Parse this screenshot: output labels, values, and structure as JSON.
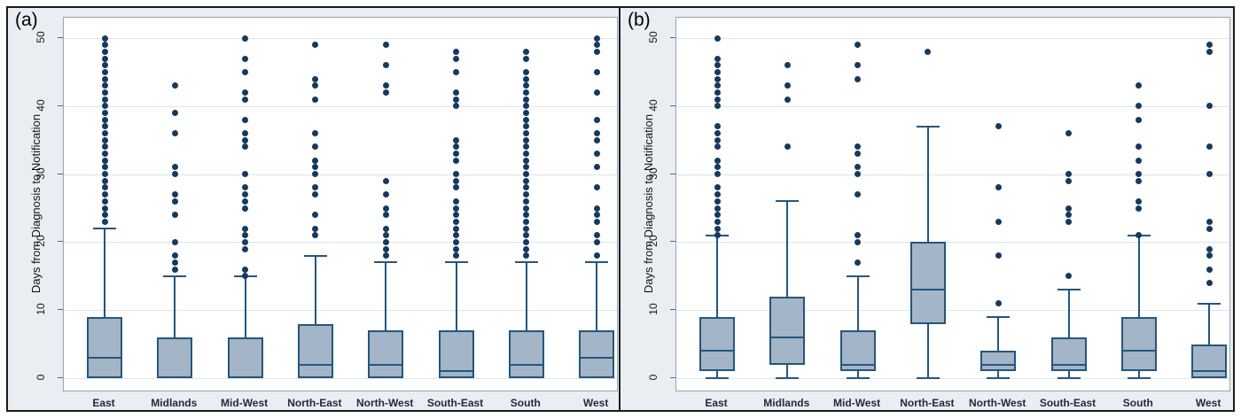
{
  "colors": {
    "box_fill": "#a3b5c7",
    "box_border": "#24567e",
    "outlier_dot": "#17395e",
    "gridline": "#d9e6f0",
    "plot_background": "#ffffff",
    "panel_background": "#e9eef2",
    "frame_border": "#1b1b1b",
    "axis_text": "#14161c"
  },
  "chart_data": [
    {
      "type": "box",
      "panel_label": "(a)",
      "ylabel": "Days from Diagnosis to Notification",
      "yticks": [
        0,
        10,
        20,
        30,
        40,
        50
      ],
      "ylim": [
        0,
        50
      ],
      "grid": true,
      "legend_position": "none",
      "categories": [
        "East",
        "Midlands",
        "Mid-West",
        "North-East",
        "North-West",
        "South-East",
        "South",
        "West"
      ],
      "boxes": [
        {
          "category": "East",
          "q1": 0,
          "median": 3,
          "q3": 9,
          "whisker_low": 0,
          "whisker_high": 22,
          "outliers": [
            23,
            24,
            25,
            26,
            27,
            28,
            29,
            30,
            31,
            32,
            33,
            34,
            35,
            36,
            37,
            38,
            39,
            40,
            41,
            42,
            43,
            44,
            45,
            46,
            47,
            48,
            49,
            50
          ]
        },
        {
          "category": "Midlands",
          "q1": 0,
          "median": 0,
          "q3": 6,
          "whisker_low": 0,
          "whisker_high": 15,
          "outliers": [
            16,
            17,
            18,
            20,
            24,
            26,
            27,
            30,
            31,
            36,
            39,
            43
          ]
        },
        {
          "category": "Mid-West",
          "q1": 0,
          "median": 0,
          "q3": 6,
          "whisker_low": 0,
          "whisker_high": 15,
          "outliers": [
            15,
            16,
            19,
            20,
            21,
            22,
            25,
            26,
            27,
            28,
            30,
            34,
            35,
            36,
            38,
            41,
            42,
            45,
            47,
            50
          ]
        },
        {
          "category": "North-East",
          "q1": 0,
          "median": 2,
          "q3": 8,
          "whisker_low": 0,
          "whisker_high": 18,
          "outliers": [
            21,
            22,
            24,
            27,
            28,
            30,
            31,
            32,
            34,
            36,
            41,
            43,
            44,
            49
          ]
        },
        {
          "category": "North-West",
          "q1": 0,
          "median": 2,
          "q3": 7,
          "whisker_low": 0,
          "whisker_high": 17,
          "outliers": [
            18,
            19,
            20,
            21,
            22,
            24,
            25,
            27,
            29,
            42,
            43,
            46,
            49
          ]
        },
        {
          "category": "South-East",
          "q1": 0,
          "median": 1,
          "q3": 7,
          "whisker_low": 0,
          "whisker_high": 17,
          "outliers": [
            18,
            19,
            20,
            21,
            22,
            23,
            24,
            25,
            26,
            28,
            29,
            30,
            32,
            33,
            34,
            35,
            40,
            41,
            42,
            45,
            47,
            48
          ]
        },
        {
          "category": "South",
          "q1": 0,
          "median": 2,
          "q3": 7,
          "whisker_low": 0,
          "whisker_high": 17,
          "outliers": [
            18,
            19,
            20,
            21,
            22,
            23,
            24,
            25,
            26,
            27,
            28,
            29,
            30,
            31,
            32,
            33,
            34,
            35,
            36,
            37,
            38,
            39,
            40,
            41,
            42,
            43,
            44,
            45,
            47,
            48
          ]
        },
        {
          "category": "West",
          "q1": 0,
          "median": 3,
          "q3": 7,
          "whisker_low": 0,
          "whisker_high": 17,
          "outliers": [
            18,
            20,
            21,
            23,
            24,
            25,
            28,
            31,
            33,
            35,
            36,
            38,
            42,
            45,
            48,
            49,
            50
          ]
        }
      ]
    },
    {
      "type": "box",
      "panel_label": "(b)",
      "ylabel": "Days from Diagnosis to Notification",
      "yticks": [
        0,
        10,
        20,
        30,
        40,
        50
      ],
      "ylim": [
        0,
        50
      ],
      "grid": true,
      "legend_position": "none",
      "categories": [
        "East",
        "Midlands",
        "Mid-West",
        "North-East",
        "North-West",
        "South-East",
        "South",
        "West"
      ],
      "boxes": [
        {
          "category": "East",
          "q1": 1,
          "median": 4,
          "q3": 9,
          "whisker_low": 0,
          "whisker_high": 21,
          "outliers": [
            21,
            22,
            23,
            24,
            25,
            26,
            27,
            28,
            30,
            31,
            32,
            34,
            35,
            36,
            37,
            40,
            41,
            42,
            43,
            44,
            45,
            46,
            47,
            50
          ]
        },
        {
          "category": "Midlands",
          "q1": 2,
          "median": 6,
          "q3": 12,
          "whisker_low": 0,
          "whisker_high": 26,
          "outliers": [
            34,
            41,
            43,
            46
          ]
        },
        {
          "category": "Mid-West",
          "q1": 1,
          "median": 2,
          "q3": 7,
          "whisker_low": 0,
          "whisker_high": 15,
          "outliers": [
            17,
            20,
            21,
            27,
            30,
            31,
            33,
            34,
            44,
            46,
            49
          ]
        },
        {
          "category": "North-East",
          "q1": 8,
          "median": 13,
          "q3": 20,
          "whisker_low": 0,
          "whisker_high": 37,
          "outliers": [
            48
          ]
        },
        {
          "category": "North-West",
          "q1": 1,
          "median": 2,
          "q3": 4,
          "whisker_low": 0,
          "whisker_high": 9,
          "outliers": [
            11,
            18,
            23,
            28,
            37
          ]
        },
        {
          "category": "South-East",
          "q1": 1,
          "median": 2,
          "q3": 6,
          "whisker_low": 0,
          "whisker_high": 13,
          "outliers": [
            15,
            23,
            24,
            25,
            29,
            30,
            36
          ]
        },
        {
          "category": "South",
          "q1": 1,
          "median": 4,
          "q3": 9,
          "whisker_low": 0,
          "whisker_high": 21,
          "outliers": [
            21,
            25,
            26,
            29,
            30,
            32,
            34,
            38,
            40,
            43
          ]
        },
        {
          "category": "West",
          "q1": 0,
          "median": 1,
          "q3": 5,
          "whisker_low": 0,
          "whisker_high": 11,
          "outliers": [
            14,
            16,
            18,
            19,
            22,
            23,
            30,
            34,
            40,
            48,
            49
          ]
        }
      ]
    }
  ]
}
